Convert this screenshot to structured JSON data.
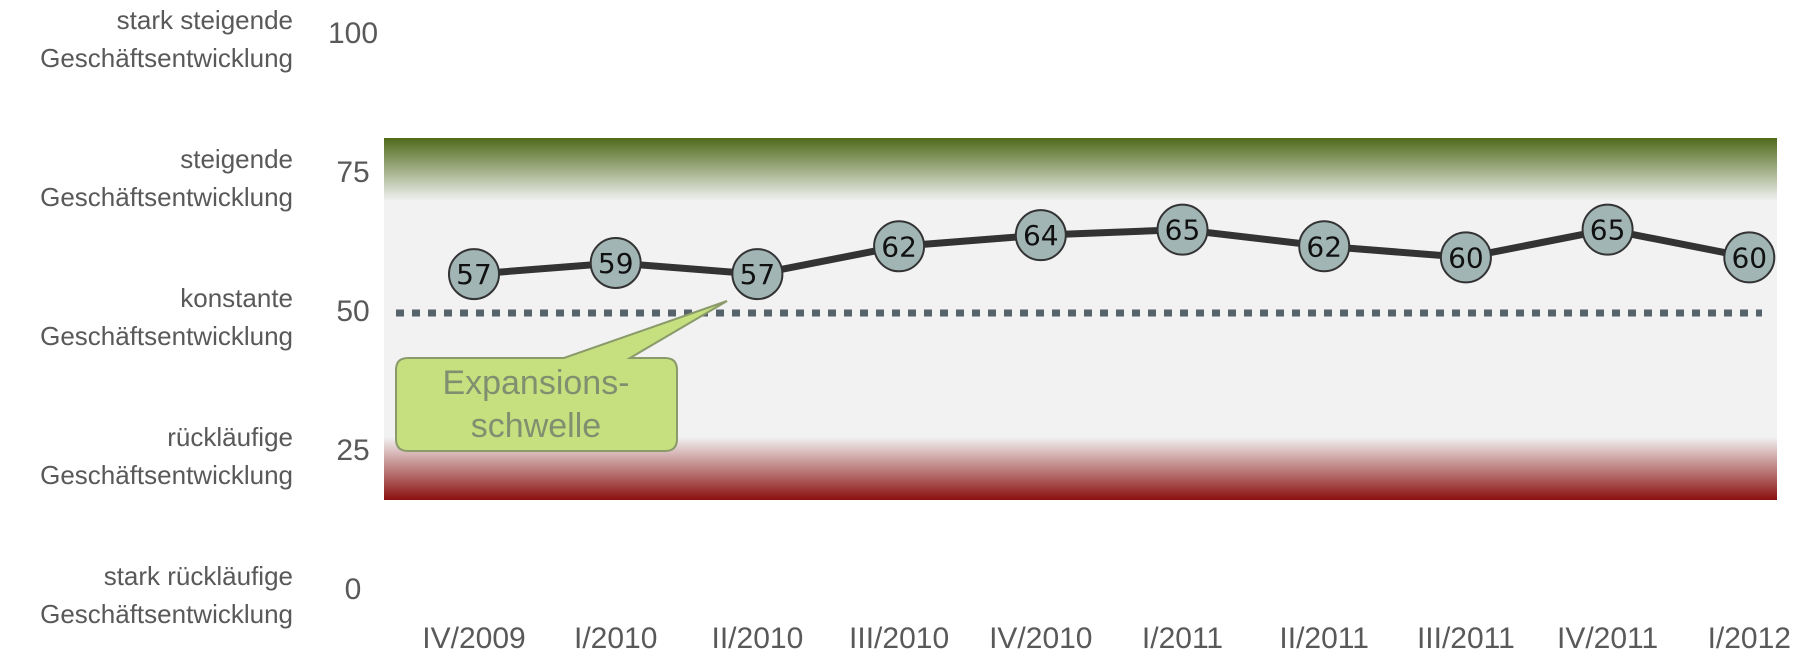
{
  "chart_data": {
    "type": "line",
    "categories": [
      "IV/2009",
      "I/2010",
      "II/2010",
      "III/2010",
      "IV/2010",
      "I/2011",
      "II/2011",
      "III/2011",
      "IV/2011",
      "I/2012"
    ],
    "series": [
      {
        "color": "#333333",
        "marker_color": "#a2b5b5",
        "values": [
          57,
          59,
          57,
          62,
          64,
          65,
          62,
          60,
          65,
          60
        ]
      }
    ],
    "ylim": [
      0,
      100
    ],
    "yticks": [
      0,
      25,
      50,
      75,
      100
    ],
    "ytick_descriptions": [
      [
        "stark rückläufige",
        "Geschäftsentwicklung"
      ],
      [
        "rückläufige",
        "Geschäftsentwicklung"
      ],
      [
        "konstante",
        "Geschäftsentwicklung"
      ],
      [
        "steigende",
        "Geschäftsentwicklung"
      ],
      [
        "stark steigende",
        "Geschäftsentwicklung"
      ]
    ],
    "threshold": {
      "value": 50,
      "label": [
        "Expansions-",
        "schwelle"
      ],
      "color": "#56626a"
    }
  }
}
